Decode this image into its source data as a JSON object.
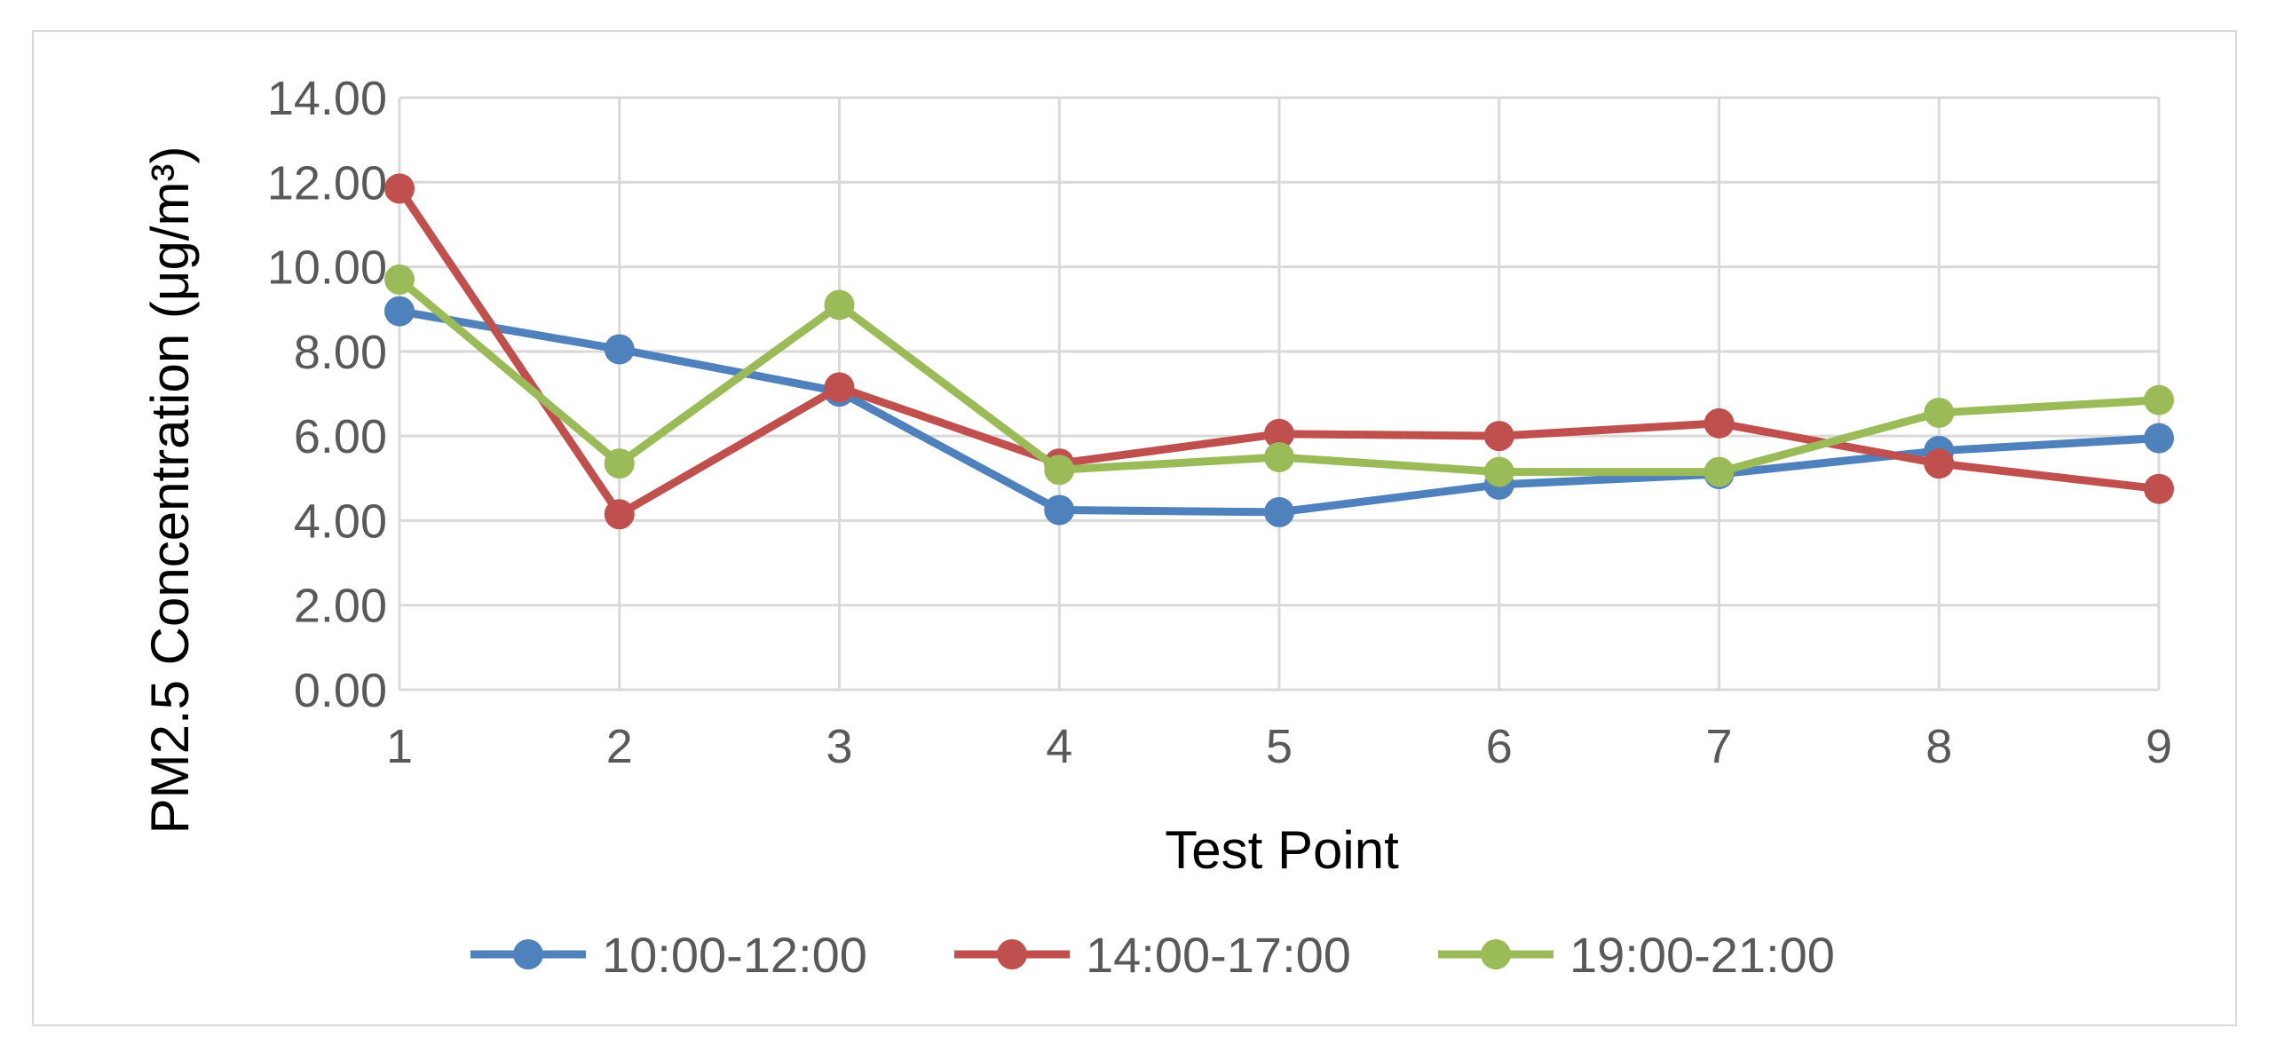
{
  "colors": {
    "series_1": "#4F81BD",
    "series_2": "#C0504D",
    "series_3": "#9BBB59",
    "grid": "#d9d9d9",
    "tick_text": "#595959"
  },
  "chart_data": {
    "type": "line",
    "title": "",
    "xlabel": "Test Point",
    "ylabel": "PM2.5 Concentration (μg/m³)",
    "x": [
      1,
      2,
      3,
      4,
      5,
      6,
      7,
      8,
      9
    ],
    "x_tick_labels": [
      "1",
      "2",
      "3",
      "4",
      "5",
      "6",
      "7",
      "8",
      "9"
    ],
    "ylim": [
      0,
      14
    ],
    "y_tick_labels": [
      "0.00",
      "2.00",
      "4.00",
      "6.00",
      "8.00",
      "10.00",
      "12.00",
      "14.00"
    ],
    "grid": true,
    "legend_position": "bottom",
    "markers": "circle",
    "series": [
      {
        "name": "10:00-12:00",
        "values": [
          8.95,
          8.05,
          7.05,
          4.25,
          4.2,
          4.85,
          5.1,
          5.65,
          5.95
        ]
      },
      {
        "name": "14:00-17:00",
        "values": [
          11.85,
          4.15,
          7.15,
          5.35,
          6.05,
          6.0,
          6.3,
          5.35,
          4.75
        ]
      },
      {
        "name": "19:00-21:00",
        "values": [
          9.7,
          5.35,
          9.1,
          5.2,
          5.5,
          5.15,
          5.15,
          6.55,
          6.85
        ]
      }
    ]
  }
}
